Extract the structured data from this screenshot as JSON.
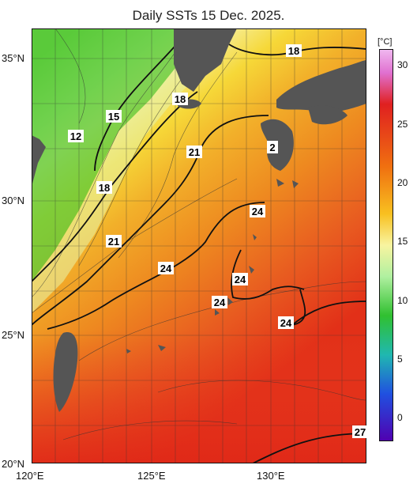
{
  "title": "Daily SSTs 15 Dec. 2025.",
  "map": {
    "lat_labels": [
      "35°N",
      "30°N",
      "25°N",
      "20°N"
    ],
    "lon_labels": [
      "120°E",
      "125°E",
      "130°E"
    ],
    "contour_labels": [
      "18",
      "18",
      "15",
      "12",
      "21",
      "2",
      "18",
      "24",
      "21",
      "24",
      "24",
      "24",
      "24",
      "27"
    ]
  },
  "colorbar": {
    "unit": "[°C]",
    "ticks": [
      "30",
      "25",
      "20",
      "15",
      "10",
      "5",
      "0"
    ],
    "colors": [
      "#e8a0e8",
      "#e02020",
      "#f07010",
      "#f0b020",
      "#f8f080",
      "#a0e880",
      "#30c030",
      "#20b0b0",
      "#2040e0",
      "#4000a0"
    ]
  },
  "colors": {
    "land": "#555555",
    "warm_sea": "#e86020",
    "cool_sea": "#70d040"
  }
}
